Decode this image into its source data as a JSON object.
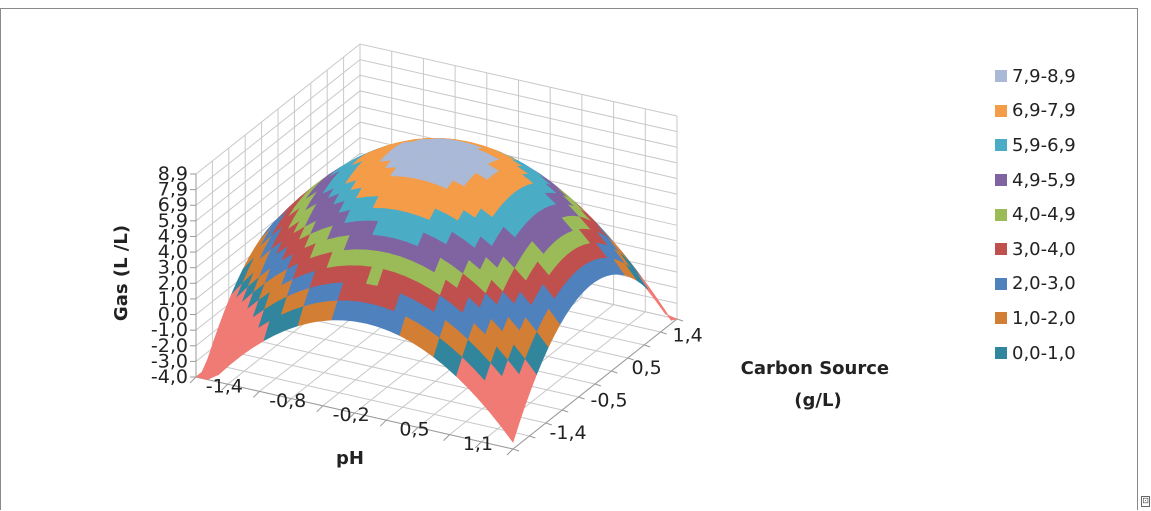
{
  "chart_data": {
    "type": "surface-3d",
    "title": "",
    "z_axis": {
      "label": "Gas (L /L)",
      "ticks": [
        "8,9",
        "7,9",
        "6,9",
        "5,9",
        "4,9",
        "4,0",
        "3,0",
        "2,0",
        "1,0",
        "0,0",
        "-1,0",
        "-2,0",
        "-3,0",
        "-4,0"
      ],
      "range": [
        -4.0,
        8.9
      ]
    },
    "x_axis": {
      "label": "pH",
      "ticks": [
        "-1,4",
        "-0,8",
        "-0,2",
        "0,5",
        "1,1"
      ],
      "range": [
        -1.4,
        1.4
      ]
    },
    "y_axis": {
      "label": "Carbon Source\n(g/L)",
      "ticks": [
        "-1,4",
        "-0,5",
        "0,5",
        "1,4"
      ],
      "range": [
        -1.4,
        1.4
      ]
    },
    "legend_position": "right",
    "legend": [
      {
        "label": "7,9-8,9",
        "color": "#a9b9d6"
      },
      {
        "label": "6,9-7,9",
        "color": "#f59c48"
      },
      {
        "label": "5,9-6,9",
        "color": "#4bacc6"
      },
      {
        "label": "4,9-5,9",
        "color": "#8064a2"
      },
      {
        "label": "4,0-4,9",
        "color": "#9bbb59"
      },
      {
        "label": "3,0-4,0",
        "color": "#c0504d"
      },
      {
        "label": "2,0-3,0",
        "color": "#4f81bd"
      },
      {
        "label": "1,0-2,0",
        "color": "#d27f35"
      },
      {
        "label": "0,0-1,0",
        "color": "#31859c"
      }
    ]
  },
  "corner_mark": "⊡"
}
